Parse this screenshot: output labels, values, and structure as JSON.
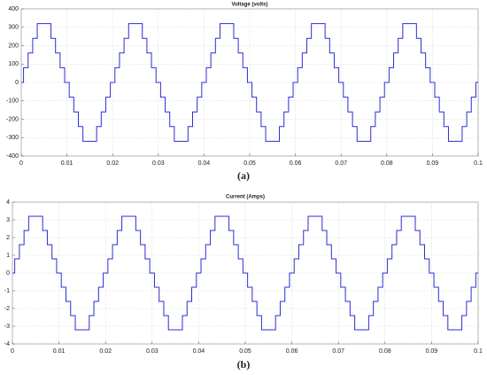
{
  "chart_data": [
    {
      "type": "line",
      "title": "Voltage (volts)",
      "caption": "(a)",
      "step": "post",
      "grid": true,
      "color": "#2d2dd6",
      "xlim": [
        0,
        0.1
      ],
      "xticks": [
        0,
        0.01,
        0.02,
        0.03,
        0.04,
        0.05,
        0.06,
        0.07,
        0.08,
        0.09,
        0.1
      ],
      "ylim": [
        -400,
        400
      ],
      "yticks": [
        -400,
        -300,
        -200,
        -100,
        0,
        100,
        200,
        300,
        400
      ],
      "x": [
        0,
        0.0005,
        0.0015,
        0.0025,
        0.0035,
        0.0065,
        0.0075,
        0.0085,
        0.0095,
        0.0105,
        0.0115,
        0.0125,
        0.0135,
        0.0165,
        0.0175,
        0.0185,
        0.0195,
        0.0205,
        0.0215,
        0.0225,
        0.0235,
        0.0265,
        0.0275,
        0.0285,
        0.0295,
        0.0305,
        0.0315,
        0.0325,
        0.0335,
        0.0365,
        0.0375,
        0.0385,
        0.0395,
        0.0405,
        0.0415,
        0.0425,
        0.0435,
        0.0465,
        0.0475,
        0.0485,
        0.0495,
        0.0505,
        0.0515,
        0.0525,
        0.0535,
        0.0565,
        0.0575,
        0.0585,
        0.0595,
        0.0605,
        0.0615,
        0.0625,
        0.0635,
        0.0665,
        0.0675,
        0.0685,
        0.0695,
        0.0705,
        0.0715,
        0.0725,
        0.0735,
        0.0765,
        0.0775,
        0.0785,
        0.0795,
        0.0805,
        0.0815,
        0.0825,
        0.0835,
        0.0865,
        0.0875,
        0.0885,
        0.0895,
        0.0905,
        0.0915,
        0.0925,
        0.0935,
        0.0965,
        0.0975,
        0.0985,
        0.0995,
        0.1
      ],
      "values": [
        0,
        80,
        160,
        240,
        320,
        240,
        160,
        80,
        0,
        -80,
        -160,
        -240,
        -320,
        -240,
        -160,
        -80,
        0,
        80,
        160,
        240,
        320,
        240,
        160,
        80,
        0,
        -80,
        -160,
        -240,
        -320,
        -240,
        -160,
        -80,
        0,
        80,
        160,
        240,
        320,
        240,
        160,
        80,
        0,
        -80,
        -160,
        -240,
        -320,
        -240,
        -160,
        -80,
        0,
        80,
        160,
        240,
        320,
        240,
        160,
        80,
        0,
        -80,
        -160,
        -240,
        -320,
        -240,
        -160,
        -80,
        0,
        80,
        160,
        240,
        320,
        240,
        160,
        80,
        0,
        -80,
        -160,
        -240,
        -320,
        -240,
        -160,
        -80,
        0,
        0
      ]
    },
    {
      "type": "line",
      "title": "Current (Amps)",
      "caption": "(b)",
      "step": "post",
      "grid": true,
      "color": "#2d2dd6",
      "xlim": [
        0,
        0.1
      ],
      "xticks": [
        0,
        0.01,
        0.02,
        0.03,
        0.04,
        0.05,
        0.06,
        0.07,
        0.08,
        0.09,
        0.1
      ],
      "ylim": [
        -4,
        4
      ],
      "yticks": [
        -4,
        -3,
        -2,
        -1,
        0,
        1,
        2,
        3,
        4
      ],
      "x": [
        0,
        0.0005,
        0.0015,
        0.0025,
        0.0035,
        0.0065,
        0.0075,
        0.0085,
        0.0095,
        0.0105,
        0.0115,
        0.0125,
        0.0135,
        0.0165,
        0.0175,
        0.0185,
        0.0195,
        0.0205,
        0.0215,
        0.0225,
        0.0235,
        0.0265,
        0.0275,
        0.0285,
        0.0295,
        0.0305,
        0.0315,
        0.0325,
        0.0335,
        0.0365,
        0.0375,
        0.0385,
        0.0395,
        0.0405,
        0.0415,
        0.0425,
        0.0435,
        0.0465,
        0.0475,
        0.0485,
        0.0495,
        0.0505,
        0.0515,
        0.0525,
        0.0535,
        0.0565,
        0.0575,
        0.0585,
        0.0595,
        0.0605,
        0.0615,
        0.0625,
        0.0635,
        0.0665,
        0.0675,
        0.0685,
        0.0695,
        0.0705,
        0.0715,
        0.0725,
        0.0735,
        0.0765,
        0.0775,
        0.0785,
        0.0795,
        0.0805,
        0.0815,
        0.0825,
        0.0835,
        0.0865,
        0.0875,
        0.0885,
        0.0895,
        0.0905,
        0.0915,
        0.0925,
        0.0935,
        0.0965,
        0.0975,
        0.0985,
        0.0995,
        0.1
      ],
      "values": [
        0,
        0.8,
        1.6,
        2.4,
        3.2,
        2.4,
        1.6,
        0.8,
        0,
        -0.8,
        -1.6,
        -2.4,
        -3.2,
        -2.4,
        -1.6,
        -0.8,
        0,
        0.8,
        1.6,
        2.4,
        3.2,
        2.4,
        1.6,
        0.8,
        0,
        -0.8,
        -1.6,
        -2.4,
        -3.2,
        -2.4,
        -1.6,
        -0.8,
        0,
        0.8,
        1.6,
        2.4,
        3.2,
        2.4,
        1.6,
        0.8,
        0,
        -0.8,
        -1.6,
        -2.4,
        -3.2,
        -2.4,
        -1.6,
        -0.8,
        0,
        0.8,
        1.6,
        2.4,
        3.2,
        2.4,
        1.6,
        0.8,
        0,
        -0.8,
        -1.6,
        -2.4,
        -3.2,
        -2.4,
        -1.6,
        -0.8,
        0,
        0.8,
        1.6,
        2.4,
        3.2,
        2.4,
        1.6,
        0.8,
        0,
        -0.8,
        -1.6,
        -2.4,
        -3.2,
        -2.4,
        -1.6,
        -0.8,
        0,
        0
      ]
    }
  ]
}
